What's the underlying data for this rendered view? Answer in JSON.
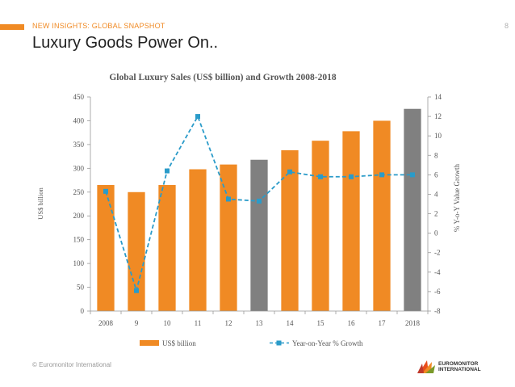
{
  "header": {
    "kicker": "NEW INSIGHTS: GLOBAL SNAPSHOT",
    "page_number": "8",
    "title": "Luxury Goods Power On.."
  },
  "footer": {
    "copyright": "© Euromonitor International",
    "logo_line1": "EUROMONITOR",
    "logo_line2": "INTERNATIONAL"
  },
  "colors": {
    "accent": "#f08a24",
    "bar_actual": "#f08a24",
    "bar_forecast": "#808080",
    "growth_line": "#2a9bc9"
  },
  "chart_data": {
    "type": "bar",
    "title": "Global Luxury Sales (US$ billion) and Growth 2008-2018",
    "categories": [
      "2008",
      "9",
      "10",
      "11",
      "12",
      "13",
      "14",
      "15",
      "16",
      "17",
      "2018"
    ],
    "ylabel": "US$ billion",
    "y2label": "% Y-o-Y Value Growth",
    "ylim": [
      0,
      450
    ],
    "y_ticks": [
      0,
      50,
      100,
      150,
      200,
      250,
      300,
      350,
      400,
      450
    ],
    "y2lim": [
      -8,
      14
    ],
    "y2_ticks": [
      -8,
      -6,
      -4,
      -2,
      0,
      2,
      4,
      6,
      8,
      10,
      12,
      14
    ],
    "series": [
      {
        "name": "US$ billion",
        "type": "bar",
        "values": [
          265,
          250,
          265,
          298,
          308,
          318,
          338,
          358,
          378,
          400,
          425
        ],
        "forecast_flags": [
          false,
          false,
          false,
          false,
          false,
          true,
          false,
          false,
          false,
          false,
          true
        ]
      },
      {
        "name": "Year-on-Year % Growth",
        "type": "line",
        "axis": "secondary",
        "values": [
          4.3,
          -5.9,
          6.4,
          12.0,
          3.5,
          3.3,
          6.3,
          5.8,
          5.8,
          6.0,
          6.0
        ]
      }
    ],
    "legend": [
      "US$ billion",
      "Year-on-Year % Growth"
    ],
    "legend_position": "bottom"
  }
}
